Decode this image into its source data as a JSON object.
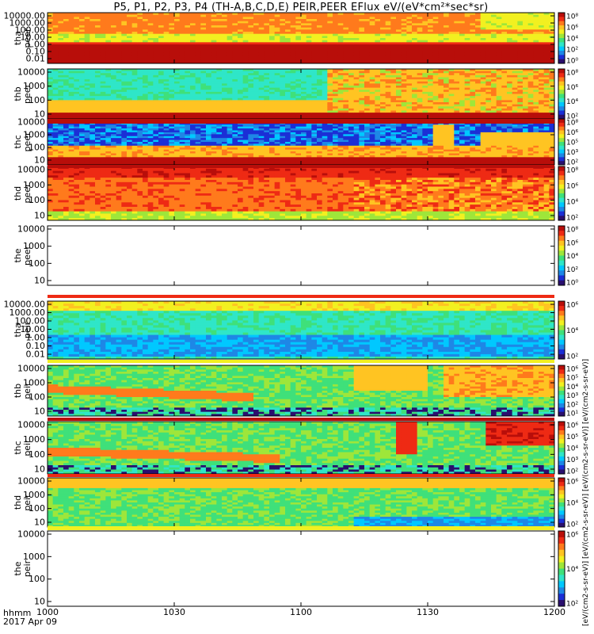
{
  "figure": {
    "title": "P5, P1, P2, P3, P4 (TH-A,B,C,D,E) PEIR,PEER EFlux eV/(eV*cm²*sec*sr)",
    "time_label": "hhmm",
    "date_label": "2017 Apr 09",
    "cb_unit_label": "[eV/(cm2-s-sr-eV)] [eV/(cm2-s-sr-eV)] [eV/(cm2-s-sr-eV)] [eV/(cm2-s-sr-eV)]",
    "colormap": [
      "#2a0f6e",
      "#1b2fd6",
      "#1e87e6",
      "#00c8ff",
      "#2fe6c8",
      "#3fe07a",
      "#9ee63a",
      "#f2f020",
      "#ffc422",
      "#ff7a1c",
      "#ee2a14",
      "#b80e0a"
    ]
  },
  "chart_data": {
    "type": "heatmap",
    "x_axis": {
      "ticks": [
        "1000",
        "1030",
        "1100",
        "1130",
        "1200"
      ],
      "range": [
        "10:00",
        "12:00"
      ]
    },
    "panels": [
      {
        "id": "tha-peer",
        "probe": "tha",
        "species": "peer",
        "ylabels": [
          "10000.00",
          "1000.00",
          "100.00",
          "10.00",
          "1.00",
          "0.10",
          "0.01"
        ],
        "cb_ticks": [
          "10⁸",
          "10⁶",
          "10⁴",
          "10²",
          "10⁰"
        ],
        "has_data": true
      },
      {
        "id": "thb-peer",
        "probe": "thb",
        "species": "peer",
        "ylabels": [
          "10000",
          "1000",
          "100",
          "10"
        ],
        "cb_ticks": [
          "10⁸",
          "10⁶",
          "10⁴",
          "10²"
        ],
        "has_data": true
      },
      {
        "id": "thc-peer",
        "probe": "thc",
        "species": "peer",
        "ylabels": [
          "10000",
          "1000",
          "100",
          "10"
        ],
        "cb_ticks": [
          "10⁸",
          "10⁶",
          "10⁵",
          "10³",
          "10²"
        ],
        "has_data": true
      },
      {
        "id": "thd-peer",
        "probe": "thd",
        "species": "peer",
        "ylabels": [
          "10000",
          "1000",
          "100",
          "10"
        ],
        "cb_ticks": [
          "10⁸",
          "10⁶",
          "10⁴",
          "10²"
        ],
        "has_data": true
      },
      {
        "id": "the-peer",
        "probe": "the",
        "species": "peer",
        "ylabels": [
          "10000",
          "1000",
          "100",
          "10"
        ],
        "cb_ticks": [
          "10⁸",
          "10⁶",
          "10⁴",
          "10²",
          "10⁰"
        ],
        "has_data": false
      },
      {
        "id": "tha-peir",
        "probe": "tha",
        "species": "peir",
        "ylabels": [
          "10000.00",
          "1000.00",
          "100.00",
          "10.00",
          "1.00",
          "0.10",
          "0.01"
        ],
        "cb_ticks": [
          "10⁶",
          "10⁴",
          "10²"
        ],
        "has_data": true
      },
      {
        "id": "thb-peir",
        "probe": "thb",
        "species": "peir",
        "ylabels": [
          "10000",
          "1000",
          "100",
          "10"
        ],
        "cb_ticks": [
          "10⁶",
          "10⁵",
          "10⁴",
          "10³",
          "10²",
          "10¹"
        ],
        "has_data": true
      },
      {
        "id": "thc-peir",
        "probe": "thc",
        "species": "peir",
        "ylabels": [
          "10000",
          "1000",
          "100",
          "10"
        ],
        "cb_ticks": [
          "10⁶",
          "10⁵",
          "10⁴",
          "10³",
          "10²"
        ],
        "has_data": true
      },
      {
        "id": "thd-peir",
        "probe": "thd",
        "species": "peir",
        "ylabels": [
          "10000",
          "1000",
          "100",
          "10"
        ],
        "cb_ticks": [
          "10⁶",
          "10⁴",
          "10²"
        ],
        "has_data": true
      },
      {
        "id": "the-peir",
        "probe": "the",
        "species": "peir",
        "ylabels": [
          "10000",
          "1000",
          "100",
          "10"
        ],
        "cb_ticks": [
          "10⁶",
          "10⁴",
          "10²"
        ],
        "has_data": false
      }
    ]
  }
}
